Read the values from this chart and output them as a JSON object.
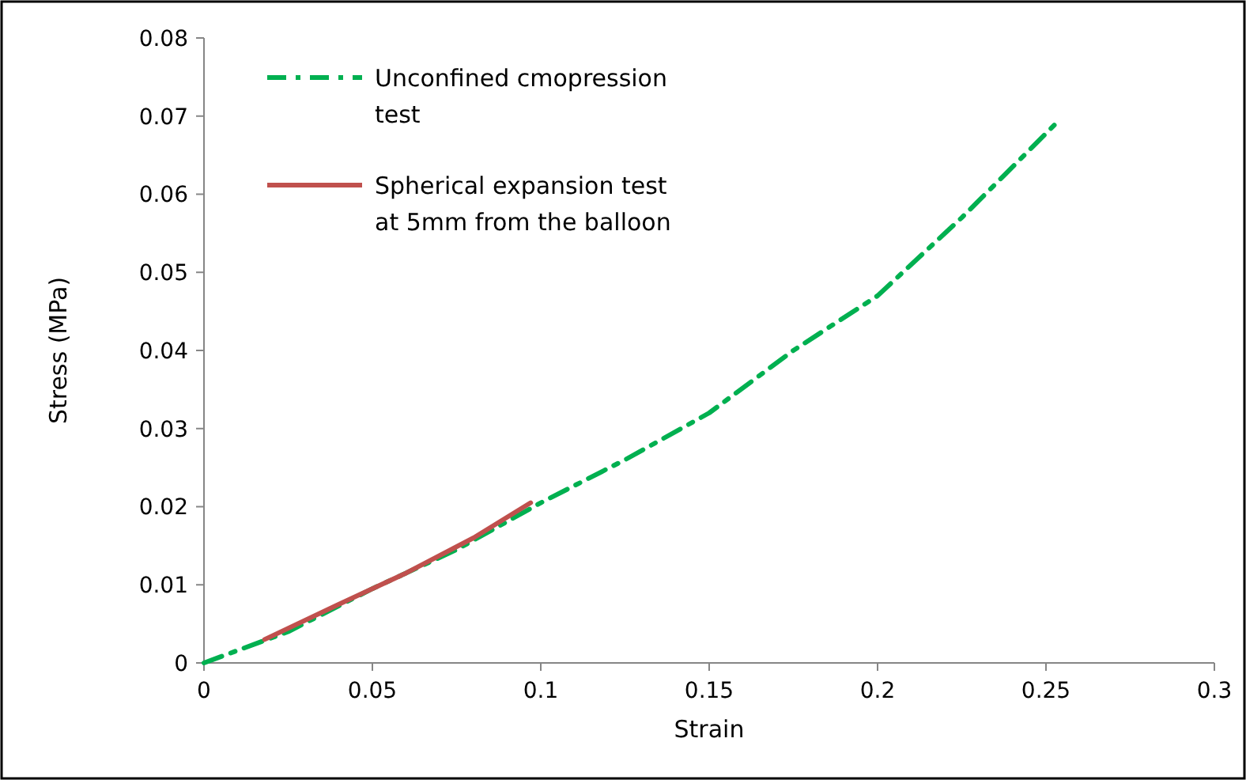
{
  "chart_data": {
    "type": "line",
    "xlabel": "Strain",
    "ylabel": "Stress (MPa)",
    "xlim": [
      0,
      0.3
    ],
    "xticks": [
      0,
      0.05,
      0.1,
      0.15,
      0.2,
      0.25,
      0.3
    ],
    "ylim": [
      0,
      0.08
    ],
    "yticks": [
      0,
      0.01,
      0.02,
      0.03,
      0.04,
      0.05,
      0.06,
      0.07,
      0.08
    ],
    "grid": false,
    "legend": "top left",
    "marker": "none",
    "series": [
      {
        "name": "Unconfined cmopression test",
        "color": "#00b050",
        "line_style": "dashed",
        "x": [
          0,
          0.025,
          0.05,
          0.075,
          0.1,
          0.125,
          0.15,
          0.175,
          0.2,
          0.225,
          0.254
        ],
        "values": [
          0,
          0.004,
          0.0095,
          0.0145,
          0.0205,
          0.026,
          0.032,
          0.04,
          0.047,
          0.057,
          0.0695
        ]
      },
      {
        "name": "Spherical expansion test at 5mm from the balloon",
        "color": "#c0504d",
        "line_style": "solid",
        "x": [
          0.018,
          0.04,
          0.06,
          0.08,
          0.097
        ],
        "values": [
          0.003,
          0.0075,
          0.0115,
          0.016,
          0.0205
        ]
      }
    ]
  }
}
